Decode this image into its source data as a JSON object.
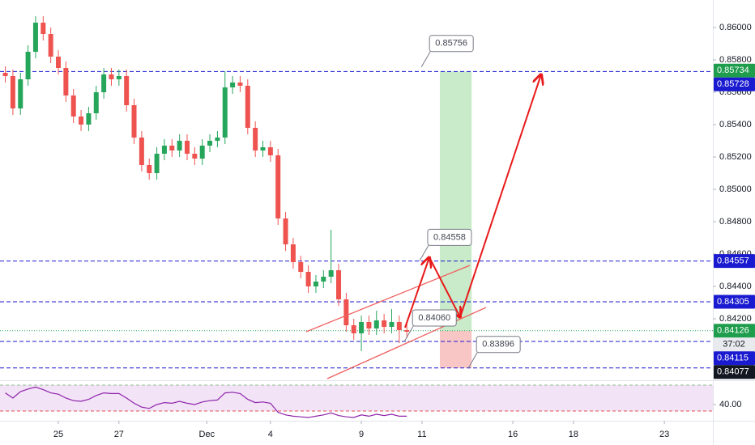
{
  "chart_data": {
    "type": "candlestick",
    "x": [
      -1.75,
      -1.5,
      -1.25,
      -1,
      -0.75,
      -0.5,
      -0.25,
      0,
      0.25,
      0.5,
      0.75,
      1,
      1.25,
      1.5,
      1.75,
      2,
      2.25,
      2.5,
      2.75,
      3,
      3.25,
      3.5,
      3.75,
      4,
      4.25,
      4.5,
      4.75,
      5,
      5.25,
      5.5,
      5.75,
      6,
      6.25,
      6.5,
      6.75,
      7,
      7.25,
      7.5,
      7.75,
      8,
      8.25,
      8.5,
      8.75,
      9,
      9.25,
      9.5,
      9.75,
      10,
      10.25,
      10.5,
      10.75,
      11,
      11.25,
      11.5
    ],
    "open": [
      0.8572,
      0.857,
      0.855,
      0.8568,
      0.8585,
      0.8603,
      0.8596,
      0.8582,
      0.8575,
      0.8558,
      0.8545,
      0.854,
      0.8547,
      0.856,
      0.8571,
      0.8568,
      0.857,
      0.8552,
      0.8532,
      0.8515,
      0.851,
      0.8522,
      0.8527,
      0.8524,
      0.853,
      0.8522,
      0.8519,
      0.8527,
      0.853,
      0.8532,
      0.8563,
      0.8566,
      0.8564,
      0.8538,
      0.8524,
      0.8526,
      0.8521,
      0.8482,
      0.8466,
      0.8455,
      0.8449,
      0.844,
      0.8443,
      0.8446,
      0.845,
      0.8432,
      0.8416,
      0.8411,
      0.8418,
      0.8414,
      0.8419,
      0.8415,
      0.8418,
      0.8413
    ],
    "high": [
      0.8576,
      0.8574,
      0.8572,
      0.8589,
      0.8607,
      0.8607,
      0.86,
      0.8586,
      0.8579,
      0.8562,
      0.8549,
      0.8551,
      0.8564,
      0.8575,
      0.8575,
      0.8574,
      0.8574,
      0.8556,
      0.8536,
      0.8519,
      0.8526,
      0.8531,
      0.8531,
      0.8534,
      0.8534,
      0.8526,
      0.8531,
      0.8534,
      0.8536,
      0.8573,
      0.857,
      0.857,
      0.8568,
      0.8542,
      0.853,
      0.853,
      0.8525,
      0.8486,
      0.847,
      0.8459,
      0.8453,
      0.8447,
      0.845,
      0.8475,
      0.8454,
      0.8436,
      0.842,
      0.8422,
      0.8422,
      0.8425,
      0.8423,
      0.8426,
      0.8422,
      0.8417
    ],
    "low": [
      0.8566,
      0.8546,
      0.8546,
      0.8564,
      0.8581,
      0.8592,
      0.8578,
      0.8571,
      0.8554,
      0.8541,
      0.8536,
      0.8536,
      0.8543,
      0.8556,
      0.8564,
      0.8564,
      0.8548,
      0.8528,
      0.8511,
      0.8506,
      0.8506,
      0.8518,
      0.852,
      0.852,
      0.8518,
      0.8515,
      0.8515,
      0.8523,
      0.8526,
      0.8528,
      0.8559,
      0.856,
      0.8534,
      0.852,
      0.852,
      0.8517,
      0.8478,
      0.8462,
      0.8451,
      0.8445,
      0.8436,
      0.8436,
      0.8439,
      0.8442,
      0.8428,
      0.8412,
      0.8407,
      0.84,
      0.841,
      0.841,
      0.8411,
      0.8411,
      0.8405,
      0.8408
    ],
    "close": [
      0.857,
      0.855,
      0.8568,
      0.8585,
      0.8603,
      0.8596,
      0.8582,
      0.8575,
      0.8558,
      0.8545,
      0.854,
      0.8547,
      0.856,
      0.8571,
      0.8568,
      0.857,
      0.8552,
      0.8532,
      0.8515,
      0.851,
      0.8522,
      0.8527,
      0.8524,
      0.853,
      0.8522,
      0.8519,
      0.8527,
      0.853,
      0.8532,
      0.8563,
      0.8566,
      0.8564,
      0.8538,
      0.8524,
      0.8526,
      0.8521,
      0.8482,
      0.8466,
      0.8455,
      0.8449,
      0.844,
      0.8443,
      0.8446,
      0.845,
      0.8432,
      0.8416,
      0.8411,
      0.8418,
      0.8414,
      0.8419,
      0.8415,
      0.8418,
      0.8413,
      0.8412
    ],
    "up_color": "#26a65b",
    "down_color": "#ef5350",
    "xlim": [
      -1.925,
      21.6
    ],
    "xticks": [
      {
        "value": 0,
        "label": "25"
      },
      {
        "value": 2,
        "label": "27"
      },
      {
        "value": 4.9,
        "label": "Dec"
      },
      {
        "value": 7,
        "label": "4"
      },
      {
        "value": 10,
        "label": "9"
      },
      {
        "value": 12,
        "label": "11"
      },
      {
        "value": 15,
        "label": "16"
      },
      {
        "value": 17,
        "label": "18"
      },
      {
        "value": 20,
        "label": "23"
      }
    ],
    "ylim": [
      0.8382,
      0.8617
    ],
    "yticks": [
      {
        "value": 0.842,
        "label": "0.84200"
      },
      {
        "value": 0.844,
        "label": "0.84400"
      },
      {
        "value": 0.846,
        "label": "0.84600"
      },
      {
        "value": 0.848,
        "label": "0.84800"
      },
      {
        "value": 0.85,
        "label": "0.85000"
      },
      {
        "value": 0.852,
        "label": "0.85200"
      },
      {
        "value": 0.854,
        "label": "0.85400"
      },
      {
        "value": 0.856,
        "label": "0.85600"
      },
      {
        "value": 0.858,
        "label": "0.85800"
      },
      {
        "value": 0.86,
        "label": "0.86000"
      }
    ],
    "levels": [
      {
        "value": 0.85728,
        "color": "#1a1ad0",
        "style": "dashed"
      },
      {
        "value": 0.84557,
        "color": "#1a1ad0",
        "style": "dashed"
      },
      {
        "value": 0.84305,
        "color": "#1a1ad0",
        "style": "dashed"
      },
      {
        "value": 0.84126,
        "color": "#26a65b",
        "style": "dotted"
      },
      {
        "value": 0.8406,
        "color": "#1a1ad0",
        "style": "dashed"
      },
      {
        "value": 0.83896,
        "color": "#1a1ad0",
        "style": "dashed"
      }
    ],
    "price_tags": [
      {
        "value": 0.85734,
        "label": "0.85734",
        "color": "#1e9d4c"
      },
      {
        "value": 0.85728,
        "label": "0.85728",
        "color": "#1a1ad0"
      },
      {
        "value": 0.84557,
        "label": "0.84557",
        "color": "#1a1ad0"
      },
      {
        "value": 0.84305,
        "label": "0.84305",
        "color": "#1a1ad0"
      },
      {
        "value": 0.84126,
        "label": "0.84126",
        "color": "#1e9d4c"
      },
      {
        "label": "37:02",
        "color": "#e8eaee"
      },
      {
        "value": 0.84115,
        "label": "0.84115",
        "color": "#1a1ad0"
      },
      {
        "value": 0.84077,
        "label": "0.84077",
        "color": "#131722"
      }
    ],
    "callouts": [
      {
        "value": 0.85756,
        "label": "0.85756",
        "x": 12.97
      },
      {
        "value": 0.84558,
        "label": "0.84558",
        "x": 12.91
      },
      {
        "value": 0.8406,
        "label": "0.84060",
        "x": 12.41
      },
      {
        "value": 0.83896,
        "label": "0.83896",
        "x": 14.52
      }
    ],
    "position": {
      "target": 0.85728,
      "entry": 0.84126,
      "stop": 0.83896,
      "x": [
        12.59,
        13.64
      ]
    },
    "rsi": {
      "values": [
        58,
        50,
        60,
        64,
        67,
        63,
        58,
        56,
        50,
        46,
        45,
        48,
        54,
        58,
        57,
        57,
        50,
        42,
        36,
        34,
        40,
        43,
        42,
        45,
        42,
        40,
        44,
        46,
        47,
        58,
        59,
        57,
        48,
        43,
        44,
        42,
        28,
        24,
        22,
        21,
        20,
        22,
        24,
        27,
        23,
        21,
        20,
        24,
        22,
        25,
        23,
        25,
        22,
        22
      ],
      "ylim": [
        15,
        75
      ],
      "yticks": [
        {
          "value": 40,
          "label": "40.00"
        }
      ],
      "bands": [
        30,
        70
      ],
      "color": "#8e24aa"
    }
  }
}
